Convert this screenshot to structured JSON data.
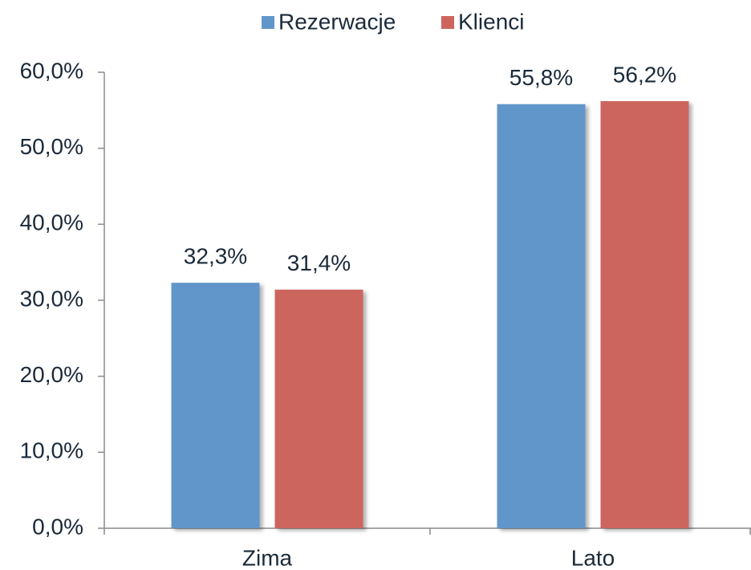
{
  "chart_data": {
    "type": "bar",
    "categories": [
      "Zima",
      "Lato"
    ],
    "series": [
      {
        "name": "Rezerwacje",
        "color": "#6096c9",
        "values": [
          32.3,
          55.8
        ],
        "value_labels": [
          "32,3%",
          "55,8%"
        ]
      },
      {
        "name": "Klienci",
        "color": "#cd655e",
        "values": [
          31.4,
          56.2
        ],
        "value_labels": [
          "31,4%",
          "56,2%"
        ]
      }
    ],
    "ylim": [
      0,
      60
    ],
    "yticks": [
      {
        "value": 0,
        "label": "0,0%"
      },
      {
        "value": 10,
        "label": "10,0%"
      },
      {
        "value": 20,
        "label": "20,0%"
      },
      {
        "value": 30,
        "label": "30,0%"
      },
      {
        "value": 40,
        "label": "40,0%"
      },
      {
        "value": 50,
        "label": "50,0%"
      },
      {
        "value": 60,
        "label": "60,0%"
      }
    ],
    "legend": "top"
  }
}
